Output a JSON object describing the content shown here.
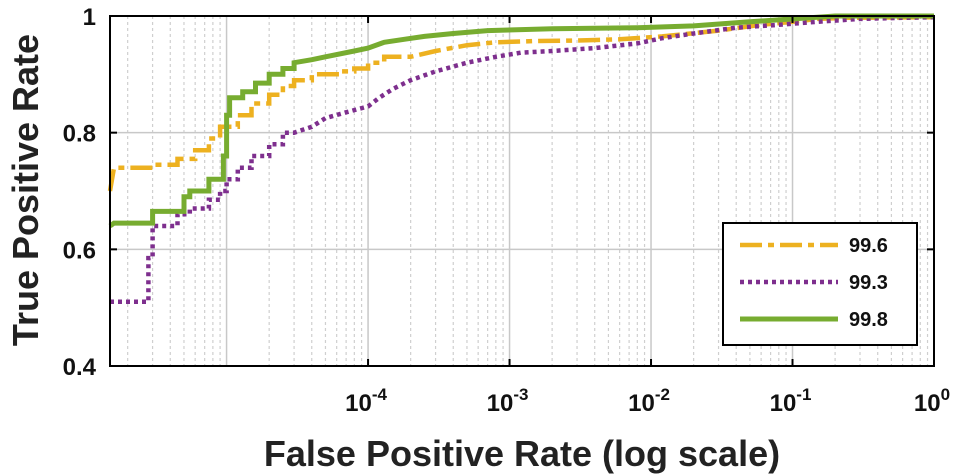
{
  "chart_data": {
    "type": "line",
    "xlabel": "False Positive Rate (log scale)",
    "ylabel": "True Positive Rate",
    "xscale": "log",
    "xlim": [
      1.5e-06,
      1
    ],
    "ylim": [
      0.4,
      1
    ],
    "grid": true,
    "legend_position": "bottom-right",
    "x_ticks": [
      {
        "value": 0.0001,
        "base": "10",
        "exp": "-4"
      },
      {
        "value": 0.001,
        "base": "10",
        "exp": "-3"
      },
      {
        "value": 0.01,
        "base": "10",
        "exp": "-2"
      },
      {
        "value": 0.1,
        "base": "10",
        "exp": "-1"
      },
      {
        "value": 1,
        "base": "10",
        "exp": "0"
      }
    ],
    "y_ticks": [
      {
        "value": 0.4,
        "label": "0.4"
      },
      {
        "value": 0.6,
        "label": "0.6"
      },
      {
        "value": 0.8,
        "label": "0.8"
      },
      {
        "value": 1.0,
        "label": "1"
      }
    ],
    "series": [
      {
        "name": "99.6",
        "color": "#EDB120",
        "style": "dashdot",
        "points": [
          [
            1.5e-06,
            0.7
          ],
          [
            1.6e-06,
            0.74
          ],
          [
            3e-06,
            0.74
          ],
          [
            3e-06,
            0.745
          ],
          [
            4.5e-06,
            0.745
          ],
          [
            4.5e-06,
            0.755
          ],
          [
            6e-06,
            0.755
          ],
          [
            6e-06,
            0.77
          ],
          [
            7.5e-06,
            0.77
          ],
          [
            7.5e-06,
            0.79
          ],
          [
            9e-06,
            0.79
          ],
          [
            9e-06,
            0.81
          ],
          [
            1.2e-05,
            0.81
          ],
          [
            1.2e-05,
            0.83
          ],
          [
            1.5e-05,
            0.83
          ],
          [
            1.5e-05,
            0.85
          ],
          [
            2e-05,
            0.85
          ],
          [
            2e-05,
            0.865
          ],
          [
            2.5e-05,
            0.865
          ],
          [
            2.5e-05,
            0.88
          ],
          [
            3e-05,
            0.88
          ],
          [
            3e-05,
            0.89
          ],
          [
            4e-05,
            0.89
          ],
          [
            4e-05,
            0.9
          ],
          [
            6e-05,
            0.9
          ],
          [
            6e-05,
            0.905
          ],
          [
            8e-05,
            0.905
          ],
          [
            8e-05,
            0.91
          ],
          [
            0.0001,
            0.91
          ],
          [
            0.0001,
            0.92
          ],
          [
            0.00013,
            0.92
          ],
          [
            0.00013,
            0.93
          ],
          [
            0.0002,
            0.93
          ],
          [
            0.0003,
            0.94
          ],
          [
            0.0005,
            0.95
          ],
          [
            0.0008,
            0.955
          ],
          [
            0.0015,
            0.957
          ],
          [
            0.003,
            0.958
          ],
          [
            0.006,
            0.96
          ],
          [
            0.012,
            0.965
          ],
          [
            0.03,
            0.975
          ],
          [
            0.06,
            0.985
          ],
          [
            0.1,
            0.99
          ],
          [
            0.15,
            0.995
          ],
          [
            0.25,
            0.997
          ],
          [
            1,
            0.998
          ]
        ]
      },
      {
        "name": "99.3",
        "color": "#7E2F8E",
        "style": "dotted",
        "points": [
          [
            1.5e-06,
            0.51
          ],
          [
            2.8e-06,
            0.51
          ],
          [
            2.8e-06,
            0.585
          ],
          [
            3e-06,
            0.585
          ],
          [
            3e-06,
            0.64
          ],
          [
            4.5e-06,
            0.64
          ],
          [
            4.5e-06,
            0.66
          ],
          [
            5.5e-06,
            0.66
          ],
          [
            5.5e-06,
            0.67
          ],
          [
            7.5e-06,
            0.67
          ],
          [
            7.5e-06,
            0.685
          ],
          [
            9e-06,
            0.685
          ],
          [
            9e-06,
            0.7
          ],
          [
            1e-05,
            0.7
          ],
          [
            1e-05,
            0.72
          ],
          [
            1.2e-05,
            0.72
          ],
          [
            1.2e-05,
            0.74
          ],
          [
            1.5e-05,
            0.74
          ],
          [
            1.5e-05,
            0.76
          ],
          [
            2e-05,
            0.76
          ],
          [
            2e-05,
            0.78
          ],
          [
            2.5e-05,
            0.78
          ],
          [
            2.5e-05,
            0.8
          ],
          [
            3e-05,
            0.8
          ],
          [
            4e-05,
            0.81
          ],
          [
            5e-05,
            0.825
          ],
          [
            7e-05,
            0.835
          ],
          [
            0.0001,
            0.845
          ],
          [
            0.00012,
            0.86
          ],
          [
            0.00015,
            0.875
          ],
          [
            0.0002,
            0.89
          ],
          [
            0.0003,
            0.905
          ],
          [
            0.0005,
            0.92
          ],
          [
            0.0008,
            0.93
          ],
          [
            0.0012,
            0.937
          ],
          [
            0.002,
            0.94
          ],
          [
            0.004,
            0.945
          ],
          [
            0.008,
            0.953
          ],
          [
            0.012,
            0.962
          ],
          [
            0.02,
            0.97
          ],
          [
            0.04,
            0.98
          ],
          [
            0.08,
            0.985
          ],
          [
            0.15,
            0.99
          ],
          [
            0.3,
            0.995
          ],
          [
            0.6,
            0.997
          ],
          [
            1,
            0.998
          ]
        ]
      },
      {
        "name": "99.8",
        "color": "#77AC30",
        "style": "solid",
        "points": [
          [
            1.5e-06,
            0.64
          ],
          [
            1.6e-06,
            0.645
          ],
          [
            3e-06,
            0.645
          ],
          [
            3e-06,
            0.665
          ],
          [
            5e-06,
            0.665
          ],
          [
            5e-06,
            0.69
          ],
          [
            5.5e-06,
            0.69
          ],
          [
            5.5e-06,
            0.7
          ],
          [
            7.5e-06,
            0.7
          ],
          [
            7.5e-06,
            0.72
          ],
          [
            9.5e-06,
            0.72
          ],
          [
            9.5e-06,
            0.76
          ],
          [
            1e-05,
            0.76
          ],
          [
            1e-05,
            0.83
          ],
          [
            1.05e-05,
            0.83
          ],
          [
            1.05e-05,
            0.86
          ],
          [
            1.3e-05,
            0.86
          ],
          [
            1.3e-05,
            0.87
          ],
          [
            1.6e-05,
            0.87
          ],
          [
            1.6e-05,
            0.885
          ],
          [
            2e-05,
            0.885
          ],
          [
            2e-05,
            0.9
          ],
          [
            2.5e-05,
            0.9
          ],
          [
            2.5e-05,
            0.91
          ],
          [
            3e-05,
            0.91
          ],
          [
            3e-05,
            0.92
          ],
          [
            4e-05,
            0.925
          ],
          [
            5e-05,
            0.93
          ],
          [
            8e-05,
            0.94
          ],
          [
            0.0001,
            0.945
          ],
          [
            0.00013,
            0.955
          ],
          [
            0.00018,
            0.96
          ],
          [
            0.00025,
            0.965
          ],
          [
            0.0004,
            0.97
          ],
          [
            0.0007,
            0.975
          ],
          [
            0.002,
            0.978
          ],
          [
            0.008,
            0.98
          ],
          [
            0.02,
            0.983
          ],
          [
            0.05,
            0.99
          ],
          [
            0.1,
            0.995
          ],
          [
            0.15,
            0.998
          ],
          [
            0.2,
            1.0
          ],
          [
            1,
            1.0
          ]
        ]
      }
    ]
  }
}
